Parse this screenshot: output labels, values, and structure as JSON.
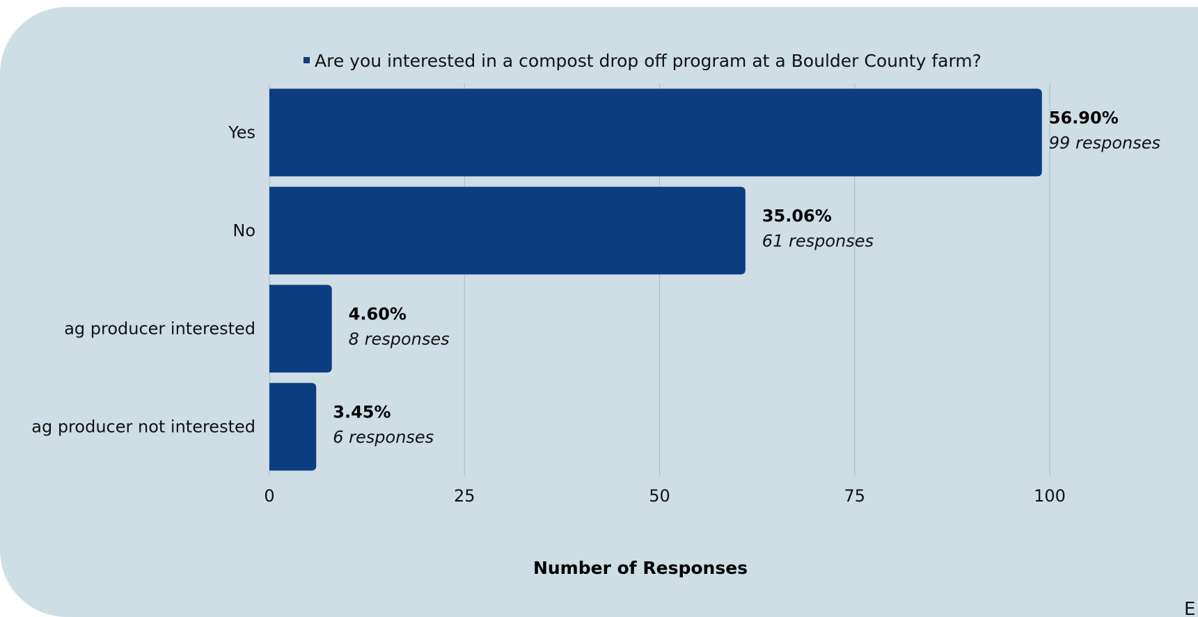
{
  "chart_data": {
    "type": "bar",
    "orientation": "horizontal",
    "categories": [
      "Yes",
      "No",
      "ag producer interested",
      "ag producer not interested"
    ],
    "series": [
      {
        "name": "Are you interested in a compost drop off program at a Boulder County farm?",
        "values": [
          99,
          61,
          8,
          6
        ],
        "percent_labels": [
          "56.90%",
          "35.06%",
          "4.60%",
          "3.45%"
        ],
        "response_labels": [
          "99 responses",
          "61 responses",
          "8 responses",
          "6 responses"
        ]
      }
    ],
    "xlabel": "Number of Responses",
    "ylabel": "",
    "xlim": [
      0,
      100
    ],
    "xticks": [
      "0",
      "25",
      "50",
      "75",
      "100"
    ],
    "grid": "vertical",
    "legend": "top",
    "colors": {
      "bar": "#0c3d80",
      "background": "#cfdde5",
      "gridline": "#aeb9c1"
    }
  },
  "corner_fragment": "E"
}
